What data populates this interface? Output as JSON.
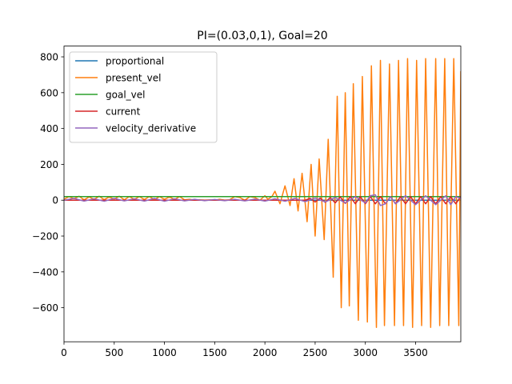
{
  "chart_data": {
    "type": "line",
    "title": "PI=(0.03,0,1), Goal=20",
    "xlabel": "",
    "ylabel": "",
    "xlim": [
      0,
      3950
    ],
    "ylim": [
      -790,
      860
    ],
    "xticks": [
      0,
      500,
      1000,
      1500,
      2000,
      2500,
      3000,
      3500
    ],
    "yticks": [
      -600,
      -400,
      -200,
      0,
      200,
      400,
      600,
      800
    ],
    "grid": false,
    "legend_position": "top-left",
    "series": [
      {
        "name": "proportional",
        "color": "#1f77b4",
        "x": [
          0,
          3950
        ],
        "y": [
          0,
          0
        ]
      },
      {
        "name": "present_vel",
        "color": "#ff7f0e",
        "x": [
          0,
          50,
          100,
          150,
          200,
          250,
          300,
          350,
          400,
          450,
          500,
          550,
          600,
          650,
          700,
          750,
          800,
          850,
          900,
          950,
          1000,
          1050,
          1100,
          1150,
          1200,
          1250,
          1300,
          1350,
          1400,
          1450,
          1500,
          1550,
          1600,
          1650,
          1700,
          1750,
          1800,
          1850,
          1900,
          1950,
          2000,
          2030,
          2070,
          2100,
          2150,
          2200,
          2250,
          2290,
          2330,
          2370,
          2420,
          2460,
          2500,
          2540,
          2590,
          2630,
          2680,
          2720,
          2760,
          2800,
          2840,
          2880,
          2930,
          2970,
          3020,
          3060,
          3110,
          3150,
          3190,
          3240,
          3290,
          3330,
          3380,
          3420,
          3470,
          3510,
          3560,
          3600,
          3650,
          3700,
          3740,
          3790,
          3830,
          3880,
          3930,
          3950
        ],
        "y": [
          5,
          20,
          8,
          22,
          2,
          18,
          5,
          22,
          3,
          18,
          6,
          22,
          2,
          20,
          5,
          20,
          4,
          20,
          3,
          20,
          5,
          18,
          4,
          20,
          2,
          5,
          0,
          3,
          0,
          2,
          0,
          5,
          0,
          3,
          20,
          15,
          0,
          20,
          15,
          0,
          25,
          5,
          20,
          50,
          -20,
          80,
          -30,
          120,
          -60,
          150,
          -120,
          200,
          -200,
          230,
          -220,
          340,
          -430,
          580,
          -600,
          600,
          -590,
          650,
          -670,
          690,
          -680,
          750,
          -710,
          780,
          -700,
          760,
          -700,
          780,
          -700,
          790,
          -710,
          780,
          -700,
          790,
          -710,
          790,
          -700,
          790,
          -700,
          790,
          -700,
          720
        ]
      },
      {
        "name": "goal_vel",
        "color": "#2ca02c",
        "x": [
          0,
          3950
        ],
        "y": [
          20,
          20
        ]
      },
      {
        "name": "current",
        "color": "#d62728",
        "x": [
          0,
          2400,
          2450,
          2500,
          2550,
          2600,
          2650,
          2700,
          2750,
          2800,
          2850,
          2900,
          2950,
          3000,
          3050,
          3100,
          3150,
          3200,
          3250,
          3300,
          3350,
          3400,
          3450,
          3500,
          3550,
          3600,
          3650,
          3700,
          3750,
          3800,
          3850,
          3900,
          3950
        ],
        "y": [
          0,
          0,
          10,
          -10,
          12,
          -12,
          15,
          -15,
          18,
          -18,
          20,
          -20,
          20,
          -20,
          20,
          -20,
          20,
          -20,
          20,
          -20,
          20,
          -20,
          20,
          -20,
          20,
          -20,
          20,
          -20,
          20,
          -20,
          20,
          -20,
          20
        ]
      },
      {
        "name": "velocity_derivative",
        "color": "#9467bd",
        "x": [
          0,
          100,
          200,
          300,
          400,
          500,
          600,
          700,
          800,
          900,
          1000,
          1100,
          1200,
          1300,
          1400,
          1500,
          1600,
          1700,
          1800,
          1900,
          2000,
          2100,
          2200,
          2300,
          2400,
          2500,
          2600,
          2700,
          2800,
          2900,
          3000,
          3050,
          3100,
          3150,
          3200,
          3250,
          3300,
          3400,
          3500,
          3600,
          3700,
          3800,
          3850,
          3900,
          3950
        ],
        "y": [
          0,
          10,
          -5,
          8,
          -6,
          10,
          -4,
          8,
          -5,
          10,
          -6,
          8,
          -4,
          5,
          -3,
          4,
          -3,
          5,
          -4,
          6,
          -5,
          8,
          -6,
          10,
          -8,
          12,
          -10,
          15,
          -15,
          20,
          -15,
          25,
          30,
          -30,
          -20,
          20,
          -20,
          25,
          -25,
          25,
          -25,
          25,
          -25,
          20,
          10
        ]
      }
    ]
  }
}
